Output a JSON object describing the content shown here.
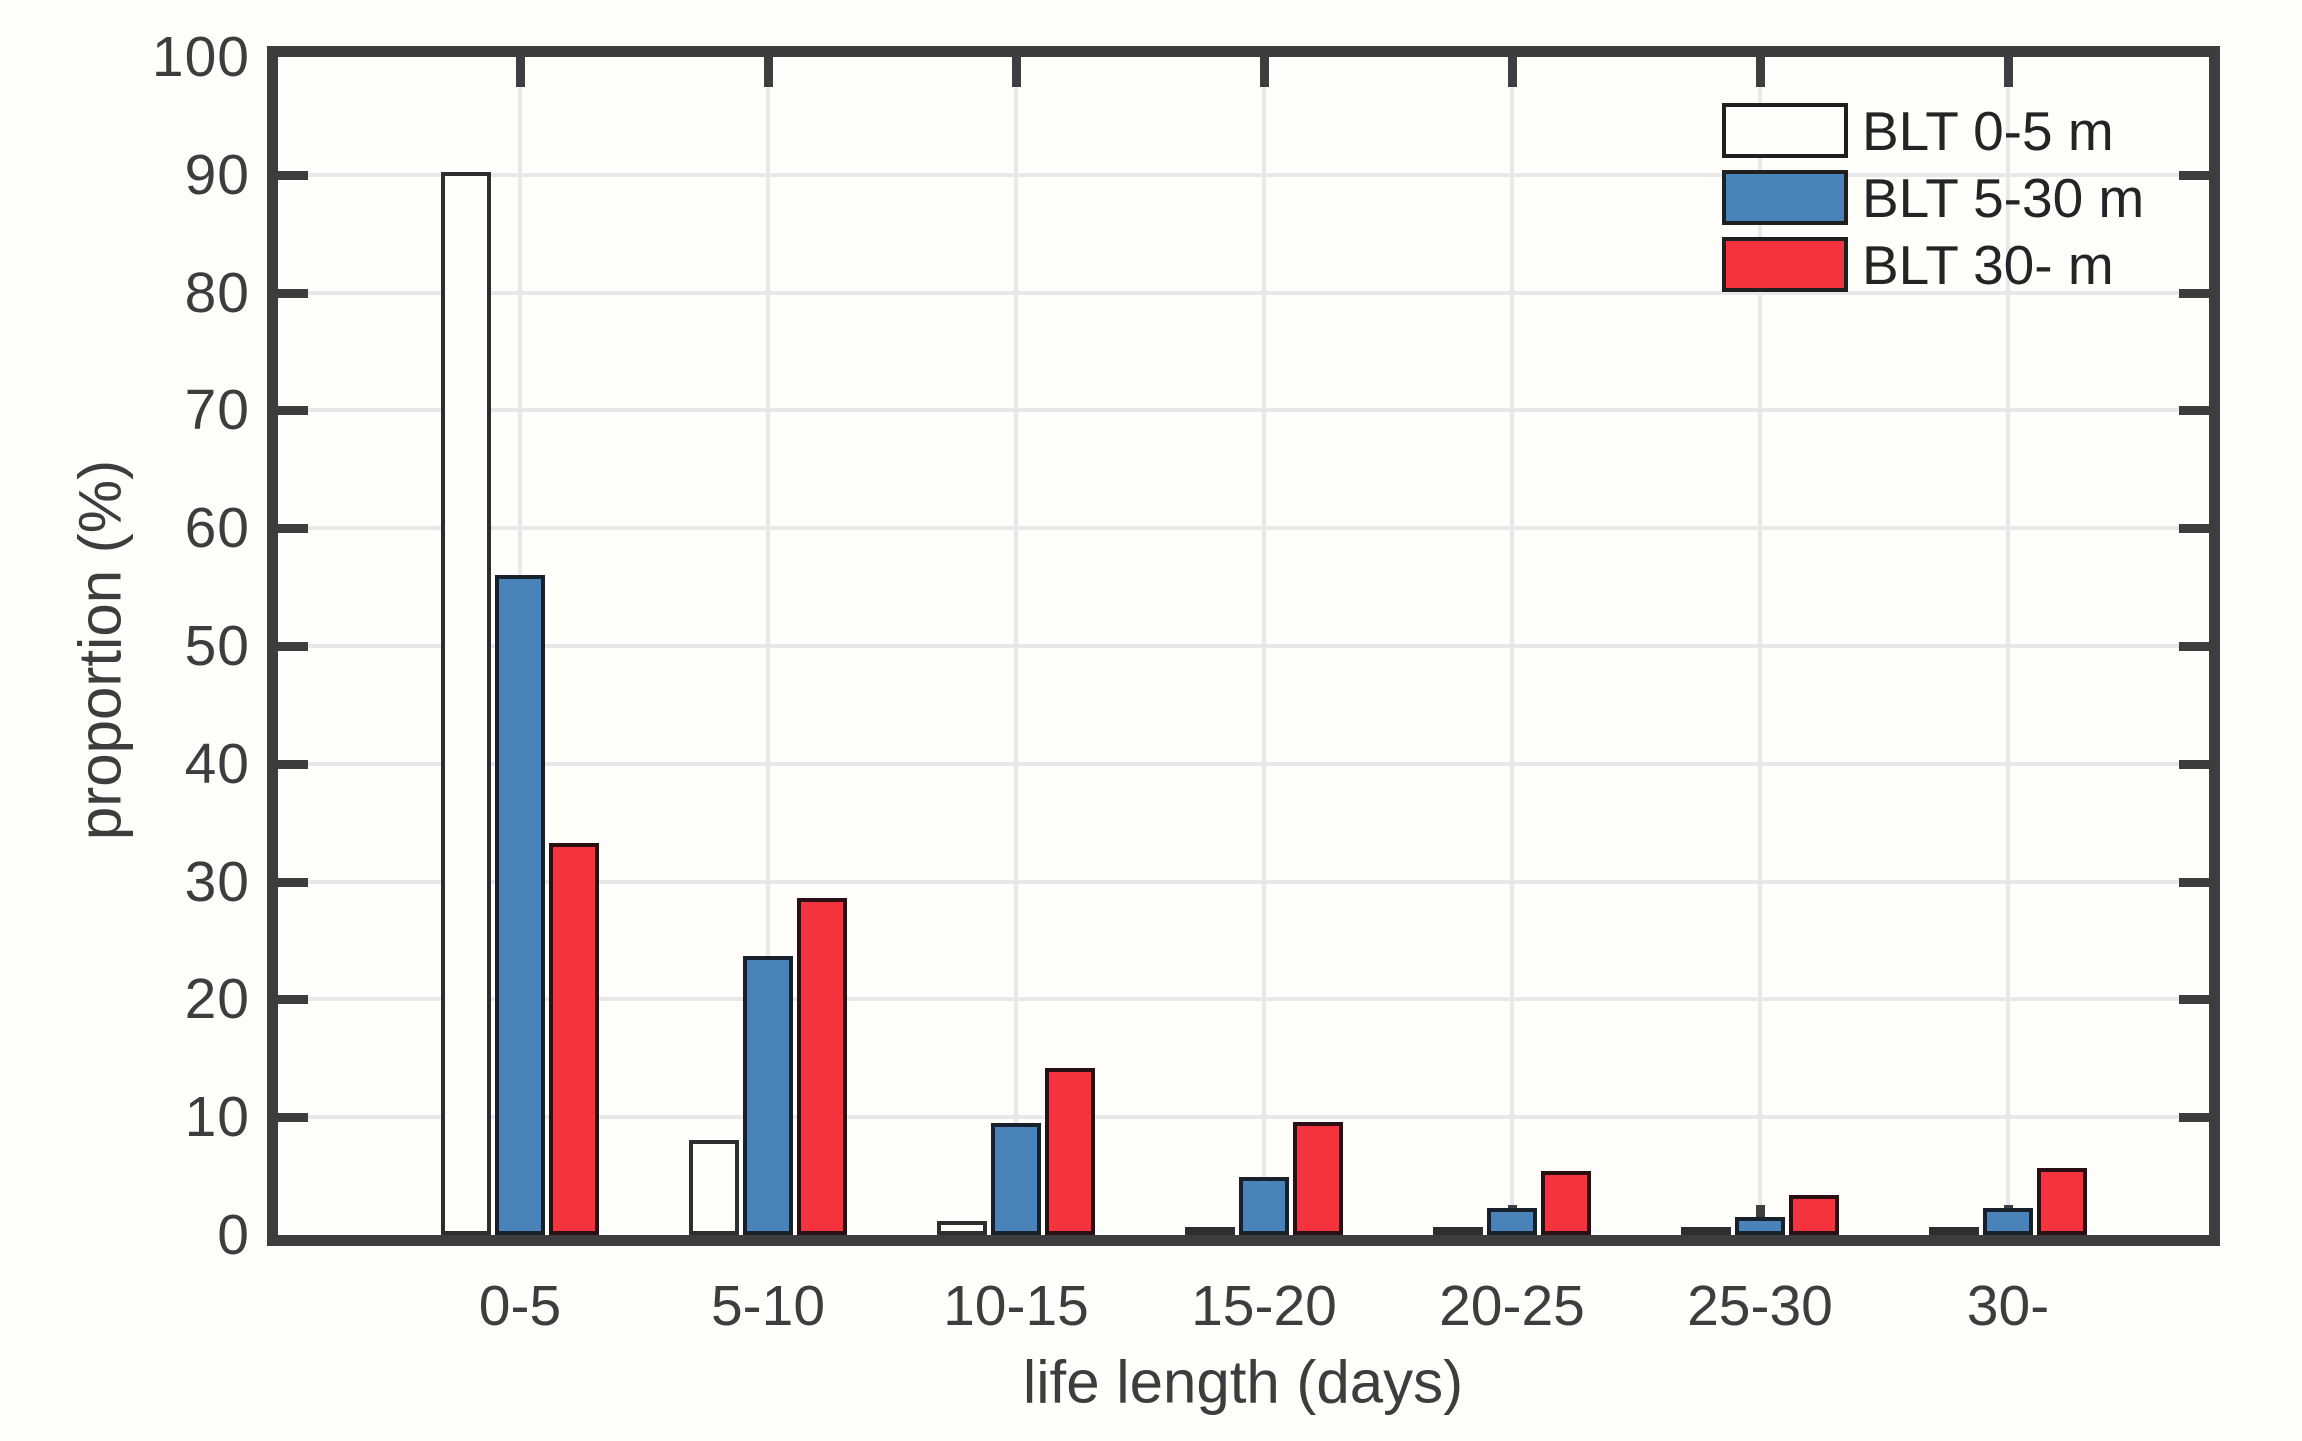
{
  "figure": {
    "background": "#fffefb",
    "axis_color": "#3d3d3d",
    "grid_color": "#e8e8e8",
    "text_color": "#3d3d3d"
  },
  "chart_data": {
    "type": "bar",
    "title": "",
    "xlabel": "life length (days)",
    "ylabel": "proportion (%)",
    "categories": [
      "0-5",
      "5-10",
      "10-15",
      "15-20",
      "20-25",
      "25-30",
      "30-"
    ],
    "series": [
      {
        "name": "BLT 0-5 m",
        "fill": "#fffefb",
        "edge": "#2e2e2e",
        "values": [
          90.2,
          8.1,
          1.2,
          0.5,
          0.25,
          0.25,
          0.25
        ]
      },
      {
        "name": "BLT 5-30 m",
        "fill": "#4a82ba",
        "edge": "#17212c",
        "values": [
          56.0,
          23.7,
          9.5,
          4.9,
          2.3,
          1.5,
          2.3
        ]
      },
      {
        "name": "BLT 30- m",
        "fill": "#f5333f",
        "edge": "#2a1013",
        "values": [
          33.3,
          28.6,
          14.2,
          9.6,
          5.4,
          3.4,
          5.7
        ]
      }
    ],
    "ylim": [
      0,
      100
    ],
    "yticks": [
      0,
      10,
      20,
      30,
      40,
      50,
      60,
      70,
      80,
      90,
      100
    ],
    "grid": "on",
    "legend_position": "top-right",
    "legend_labels": [
      "BLT 0-5 m",
      "BLT 5-30 m",
      "BLT 30- m"
    ]
  }
}
